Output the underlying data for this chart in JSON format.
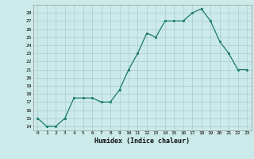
{
  "x": [
    0,
    1,
    2,
    3,
    4,
    5,
    6,
    7,
    8,
    9,
    10,
    11,
    12,
    13,
    14,
    15,
    16,
    17,
    18,
    19,
    20,
    21,
    22,
    23
  ],
  "y": [
    15,
    14,
    14,
    15,
    17.5,
    17.5,
    17.5,
    17,
    17,
    18.5,
    21,
    23,
    25.5,
    25,
    27,
    27,
    27,
    28,
    28.5,
    27,
    24.5,
    23,
    21,
    21
  ],
  "xlabel": "Humidex (Indice chaleur)",
  "line_color": "#1a7a6e",
  "bg_color": "#cceaea",
  "grid_color": "#aacccc",
  "ylim_min": 13.5,
  "ylim_max": 29.0,
  "xlim_min": -0.5,
  "xlim_max": 23.5,
  "yticks": [
    14,
    15,
    16,
    17,
    18,
    19,
    20,
    21,
    22,
    23,
    24,
    25,
    26,
    27,
    28
  ],
  "xticks": [
    0,
    1,
    2,
    3,
    4,
    5,
    6,
    7,
    8,
    9,
    10,
    11,
    12,
    13,
    14,
    15,
    16,
    17,
    18,
    19,
    20,
    21,
    22,
    23
  ]
}
